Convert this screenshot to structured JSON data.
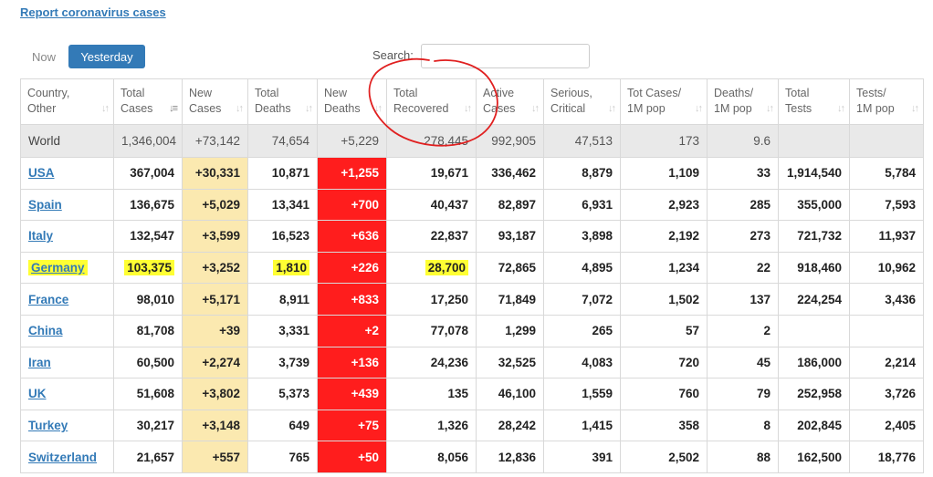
{
  "header": {
    "report_link": "Report coronavirus cases"
  },
  "toggle": {
    "now_label": "Now",
    "yesterday_label": "Yesterday"
  },
  "search": {
    "label": "Search:",
    "value": "",
    "placeholder": ""
  },
  "colors": {
    "new_cases_bg": "#fbe9b0",
    "new_deaths_bg": "#ff1d1d",
    "highlight": "#ffff33",
    "circle": "#e02020"
  },
  "table": {
    "columns": [
      {
        "l1": "Country,",
        "l2": "Other"
      },
      {
        "l1": "Total",
        "l2": "Cases"
      },
      {
        "l1": "New",
        "l2": "Cases"
      },
      {
        "l1": "Total",
        "l2": "Deaths"
      },
      {
        "l1": "New",
        "l2": "Deaths"
      },
      {
        "l1": "Total",
        "l2": "Recovered"
      },
      {
        "l1": "Active",
        "l2": "Cases"
      },
      {
        "l1": "Serious,",
        "l2": "Critical"
      },
      {
        "l1": "Tot Cases/",
        "l2": "1M pop"
      },
      {
        "l1": "Deaths/",
        "l2": "1M pop"
      },
      {
        "l1": "Total",
        "l2": "Tests"
      },
      {
        "l1": "Tests/",
        "l2": "1M pop"
      }
    ],
    "world": [
      "World",
      "1,346,004",
      "+73,142",
      "74,654",
      "+5,229",
      "278,445",
      "992,905",
      "47,513",
      "173",
      "9.6",
      "",
      ""
    ],
    "rows": [
      [
        "USA",
        "367,004",
        "+30,331",
        "10,871",
        "+1,255",
        "19,671",
        "336,462",
        "8,879",
        "1,109",
        "33",
        "1,914,540",
        "5,784"
      ],
      [
        "Spain",
        "136,675",
        "+5,029",
        "13,341",
        "+700",
        "40,437",
        "82,897",
        "6,931",
        "2,923",
        "285",
        "355,000",
        "7,593"
      ],
      [
        "Italy",
        "132,547",
        "+3,599",
        "16,523",
        "+636",
        "22,837",
        "93,187",
        "3,898",
        "2,192",
        "273",
        "721,732",
        "11,937"
      ],
      [
        "Germany",
        "103,375",
        "+3,252",
        "1,810",
        "+226",
        "28,700",
        "72,865",
        "4,895",
        "1,234",
        "22",
        "918,460",
        "10,962"
      ],
      [
        "France",
        "98,010",
        "+5,171",
        "8,911",
        "+833",
        "17,250",
        "71,849",
        "7,072",
        "1,502",
        "137",
        "224,254",
        "3,436"
      ],
      [
        "China",
        "81,708",
        "+39",
        "3,331",
        "+2",
        "77,078",
        "1,299",
        "265",
        "57",
        "2",
        "",
        ""
      ],
      [
        "Iran",
        "60,500",
        "+2,274",
        "3,739",
        "+136",
        "24,236",
        "32,525",
        "4,083",
        "720",
        "45",
        "186,000",
        "2,214"
      ],
      [
        "UK",
        "51,608",
        "+3,802",
        "5,373",
        "+439",
        "135",
        "46,100",
        "1,559",
        "760",
        "79",
        "252,958",
        "3,726"
      ],
      [
        "Turkey",
        "30,217",
        "+3,148",
        "649",
        "+75",
        "1,326",
        "28,242",
        "1,415",
        "358",
        "8",
        "202,845",
        "2,405"
      ],
      [
        "Switzerland",
        "21,657",
        "+557",
        "765",
        "+50",
        "8,056",
        "12,836",
        "391",
        "2,502",
        "88",
        "162,500",
        "18,776"
      ]
    ]
  }
}
